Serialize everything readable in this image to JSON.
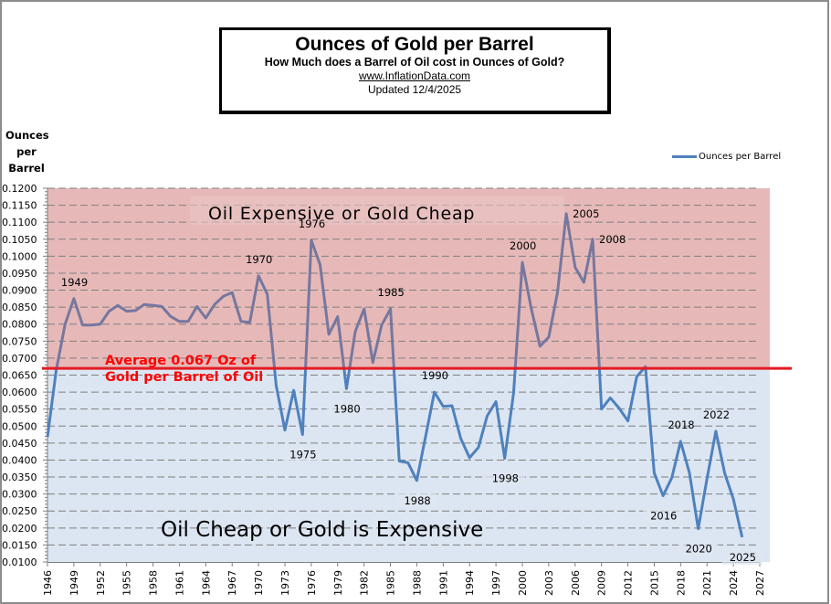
{
  "header": {
    "title": "Ounces of Gold per Barrel",
    "subtitle": "How Much does a Barrel of Oil cost in Ounces of Gold?",
    "website": "www.InflationData.com",
    "updated": "Updated  12/4/2025"
  },
  "colors": {
    "line": "#4f81bd",
    "line_above_average": "#76779f",
    "expensive_band": "#e6b9b8",
    "cheap_band": "#dce6f2",
    "average_line": "#e31b23",
    "average_text": "#ff0000",
    "gridline": "#7f7f7f"
  },
  "chart_data": {
    "type": "line",
    "title": "Ounces of Gold per Barrel",
    "subtitle": "How Much does a Barrel of Oil cost in Ounces of Gold?",
    "xlabel": "",
    "ylabel": "Ounces per Barrel",
    "ylabel_lines": [
      "Ounces",
      "per",
      "Barrel"
    ],
    "ylim": [
      0.01,
      0.12
    ],
    "y_tick_step": 0.005,
    "y_ticks": [
      "0.0100",
      "0.0150",
      "0.0200",
      "0.0250",
      "0.0300",
      "0.0350",
      "0.0400",
      "0.0450",
      "0.0500",
      "0.0550",
      "0.0600",
      "0.0650",
      "0.0700",
      "0.0750",
      "0.0800",
      "0.0850",
      "0.0900",
      "0.0950",
      "0.1000",
      "0.1050",
      "0.1100",
      "0.1150",
      "0.1200"
    ],
    "xlim": [
      1946,
      2027
    ],
    "x_ticks": [
      "1946",
      "1949",
      "1952",
      "1955",
      "1958",
      "1961",
      "1964",
      "1967",
      "1970",
      "1973",
      "1976",
      "1979",
      "1982",
      "1985",
      "1988",
      "1991",
      "1994",
      "1997",
      "2000",
      "2003",
      "2006",
      "2009",
      "2012",
      "2015",
      "2018",
      "2021",
      "2024",
      "2027"
    ],
    "grid": true,
    "legend": {
      "position": "top-right",
      "entries": [
        "Ounces per Barrel"
      ]
    },
    "series": [
      {
        "name": "Ounces per Barrel",
        "x": [
          1946,
          1947,
          1948,
          1949,
          1950,
          1951,
          1952,
          1953,
          1954,
          1955,
          1956,
          1957,
          1958,
          1959,
          1960,
          1961,
          1962,
          1963,
          1964,
          1965,
          1966,
          1967,
          1968,
          1969,
          1970,
          1971,
          1972,
          1973,
          1974,
          1975,
          1976,
          1977,
          1978,
          1979,
          1980,
          1981,
          1982,
          1983,
          1984,
          1985,
          1986,
          1987,
          1988,
          1989,
          1990,
          1991,
          1992,
          1993,
          1994,
          1995,
          1996,
          1997,
          1998,
          1999,
          2000,
          2001,
          2002,
          2003,
          2004,
          2005,
          2006,
          2007,
          2008,
          2009,
          2010,
          2011,
          2012,
          2013,
          2014,
          2015,
          2016,
          2017,
          2018,
          2019,
          2020,
          2021,
          2022,
          2023,
          2024,
          2025
        ],
        "values": [
          0.0468,
          0.0665,
          0.08,
          0.0875,
          0.0797,
          0.0797,
          0.08,
          0.0838,
          0.0855,
          0.0838,
          0.084,
          0.0858,
          0.0855,
          0.0852,
          0.0823,
          0.0808,
          0.0808,
          0.0852,
          0.0818,
          0.0858,
          0.0882,
          0.0893,
          0.0808,
          0.0805,
          0.0942,
          0.0888,
          0.062,
          0.0488,
          0.0605,
          0.0475,
          0.1047,
          0.0975,
          0.077,
          0.0822,
          0.061,
          0.0778,
          0.0845,
          0.0687,
          0.0797,
          0.0845,
          0.0397,
          0.0392,
          0.034,
          0.047,
          0.06,
          0.0558,
          0.056,
          0.0463,
          0.0407,
          0.0437,
          0.053,
          0.0572,
          0.0405,
          0.0597,
          0.0982,
          0.0848,
          0.0735,
          0.0762,
          0.0893,
          0.1125,
          0.0967,
          0.0923,
          0.105,
          0.055,
          0.0583,
          0.0553,
          0.0515,
          0.0645,
          0.0675,
          0.0362,
          0.0295,
          0.0348,
          0.0455,
          0.0362,
          0.0198,
          0.0345,
          0.0485,
          0.0362,
          0.0285,
          0.0173
        ]
      }
    ],
    "average": {
      "value": 0.067,
      "label_line1": "Average 0.067 Oz of",
      "label_line2": "Gold per Barrel of Oil"
    },
    "bands": [
      {
        "name": "expensive",
        "label": "Oil  Expensive or Gold Cheap",
        "from": 0.067,
        "to": 0.12
      },
      {
        "name": "cheap",
        "label": "Oil Cheap or Gold is Expensive",
        "from": 0.01,
        "to": 0.067
      }
    ],
    "annotations": [
      {
        "text": "1949",
        "year": 1949,
        "pos": "above"
      },
      {
        "text": "1970",
        "year": 1970,
        "pos": "above"
      },
      {
        "text": "1976",
        "year": 1976,
        "pos": "above"
      },
      {
        "text": "1985",
        "year": 1985,
        "pos": "above"
      },
      {
        "text": "1975",
        "year": 1975,
        "pos": "below"
      },
      {
        "text": "1980",
        "year": 1980,
        "pos": "below"
      },
      {
        "text": "1988",
        "year": 1988,
        "pos": "below"
      },
      {
        "text": "1990",
        "year": 1990,
        "pos": "above"
      },
      {
        "text": "1998",
        "year": 1998,
        "pos": "below"
      },
      {
        "text": "2000",
        "year": 2000,
        "pos": "above"
      },
      {
        "text": "2005",
        "year": 2005,
        "pos": "right"
      },
      {
        "text": "2008",
        "year": 2008,
        "pos": "right"
      },
      {
        "text": "2016",
        "year": 2016,
        "pos": "below"
      },
      {
        "text": "2018",
        "year": 2018,
        "pos": "above"
      },
      {
        "text": "2020",
        "year": 2020,
        "pos": "below"
      },
      {
        "text": "2022",
        "year": 2022,
        "pos": "above"
      },
      {
        "text": "2025",
        "year": 2025,
        "pos": "below"
      }
    ]
  }
}
